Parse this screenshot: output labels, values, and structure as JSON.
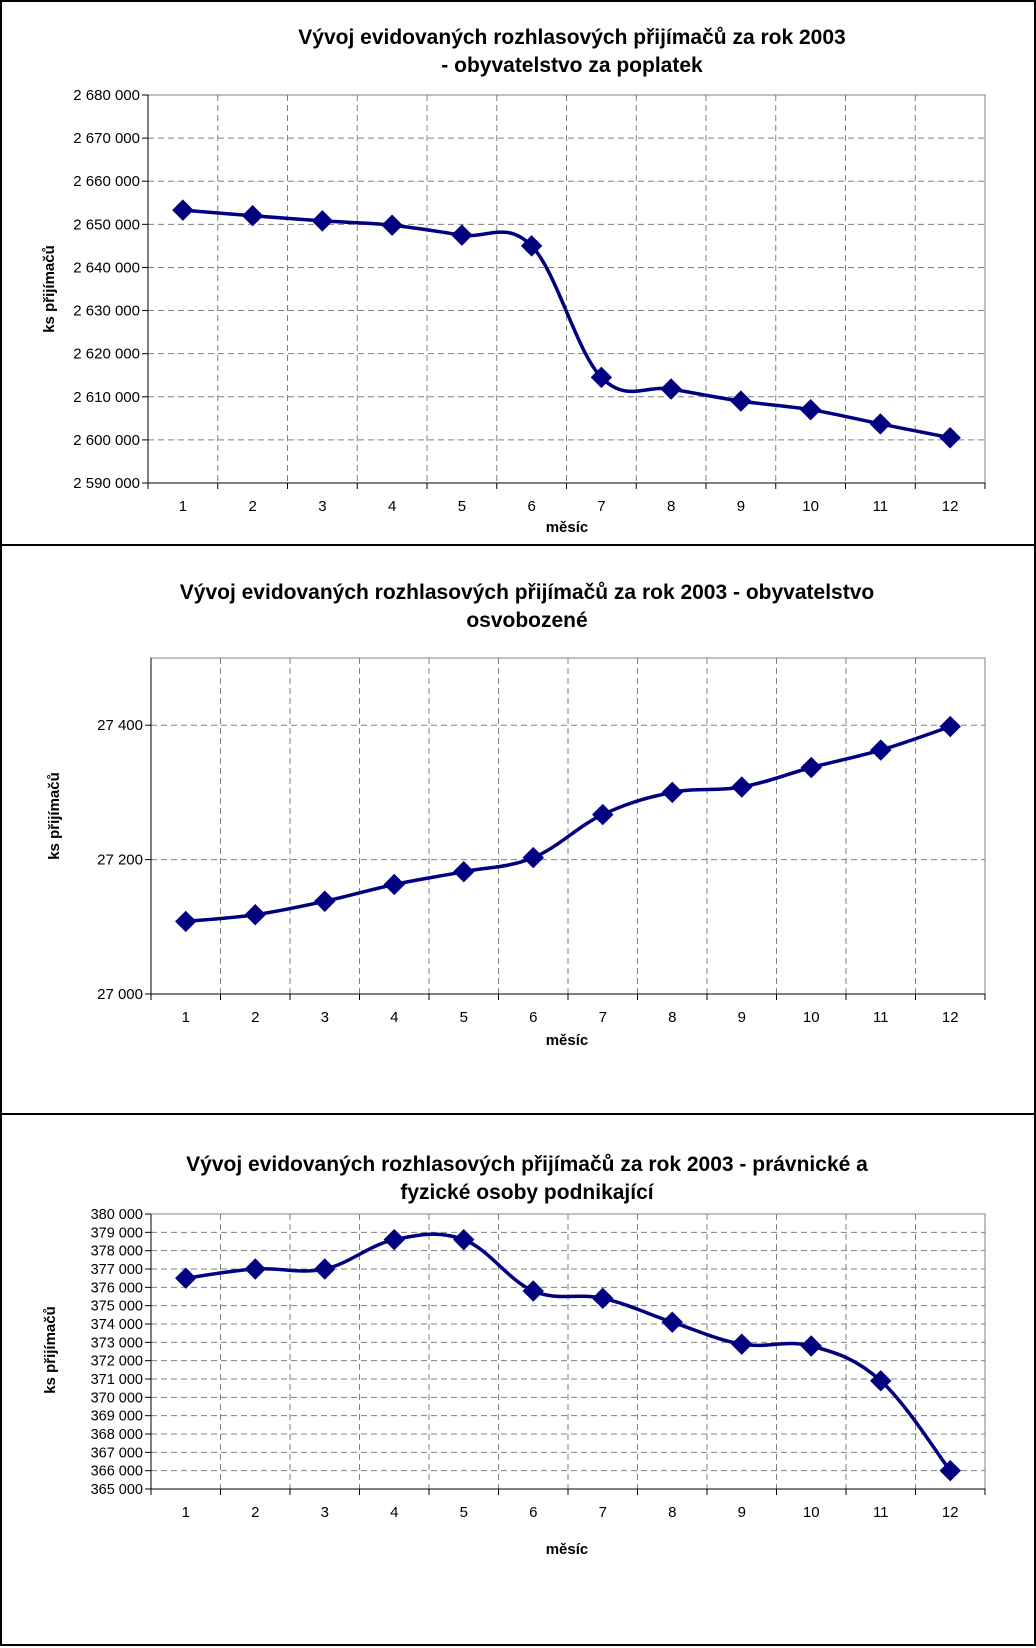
{
  "chart_data": [
    {
      "type": "line",
      "title_lines": [
        "Vývoj evidovaných rozhlasových přijímačů za rok 2003",
        "- obyvatelstvo za poplatek"
      ],
      "xlabel": "měsíc",
      "ylabel": "ks přijímačů",
      "x": [
        1,
        2,
        3,
        4,
        5,
        6,
        7,
        8,
        9,
        10,
        11,
        12
      ],
      "y_tick_labels": [
        "2 680 000",
        "2 670 000",
        "2 660 000",
        "2 650 000",
        "2 640 000",
        "2 630 000",
        "2 620 000",
        "2 610 000",
        "2 600 000",
        "2 590 000"
      ],
      "ylim": [
        2590000,
        2680000
      ],
      "grid": true,
      "series": [
        {
          "values": [
            2653300,
            2652000,
            2650800,
            2649800,
            2647500,
            2645000,
            2614500,
            2611800,
            2609000,
            2607000,
            2603700,
            2600500
          ]
        }
      ],
      "colors": {
        "line": "#000080",
        "grid": "#808080"
      }
    },
    {
      "type": "line",
      "title_lines": [
        "Vývoj evidovaných rozhlasových přijímačů za rok 2003 - obyvatelstvo",
        "osvobozené"
      ],
      "xlabel": "měsíc",
      "ylabel": "ks přijímačů",
      "x": [
        1,
        2,
        3,
        4,
        5,
        6,
        7,
        8,
        9,
        10,
        11,
        12
      ],
      "y_tick_labels": [
        "27 400",
        "27 200",
        "27 000"
      ],
      "ylim": [
        27000,
        27500
      ],
      "grid": true,
      "series": [
        {
          "values": [
            27108,
            27118,
            27138,
            27163,
            27182,
            27203,
            27267,
            27300,
            27308,
            27337,
            27363,
            27398
          ]
        }
      ],
      "colors": {
        "line": "#000080",
        "grid": "#808080"
      }
    },
    {
      "type": "line",
      "title_lines": [
        "Vývoj evidovaných rozhlasových přijímačů za rok 2003  - právnické a",
        "fyzické osoby podnikající"
      ],
      "xlabel": "měsíc",
      "ylabel": "ks přijímačů",
      "x": [
        1,
        2,
        3,
        4,
        5,
        6,
        7,
        8,
        9,
        10,
        11,
        12
      ],
      "y_tick_labels": [
        "380 000",
        "379 000",
        "378 000",
        "377 000",
        "376 000",
        "375 000",
        "374 000",
        "373 000",
        "372 000",
        "371 000",
        "370 000",
        "369 000",
        "368 000",
        "367 000",
        "366 000",
        "365 000"
      ],
      "ylim": [
        365000,
        380000
      ],
      "grid": true,
      "series": [
        {
          "values": [
            376500,
            377000,
            377000,
            378600,
            378600,
            375800,
            375400,
            374100,
            372900,
            372800,
            370900,
            366000
          ]
        }
      ],
      "colors": {
        "line": "#000080",
        "grid": "#808080"
      }
    }
  ]
}
